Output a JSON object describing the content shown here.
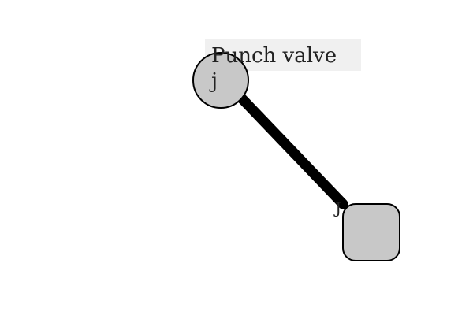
{
  "diagram": {
    "title": "Punch valve",
    "joint_label": "j",
    "handle_label": "J",
    "colors": {
      "background": "#ffffff",
      "label_bg": "#f0f0f0",
      "node_fill": "#c8c8c8",
      "node_stroke": "#000000",
      "link": "#000000",
      "text": "#222222"
    }
  }
}
